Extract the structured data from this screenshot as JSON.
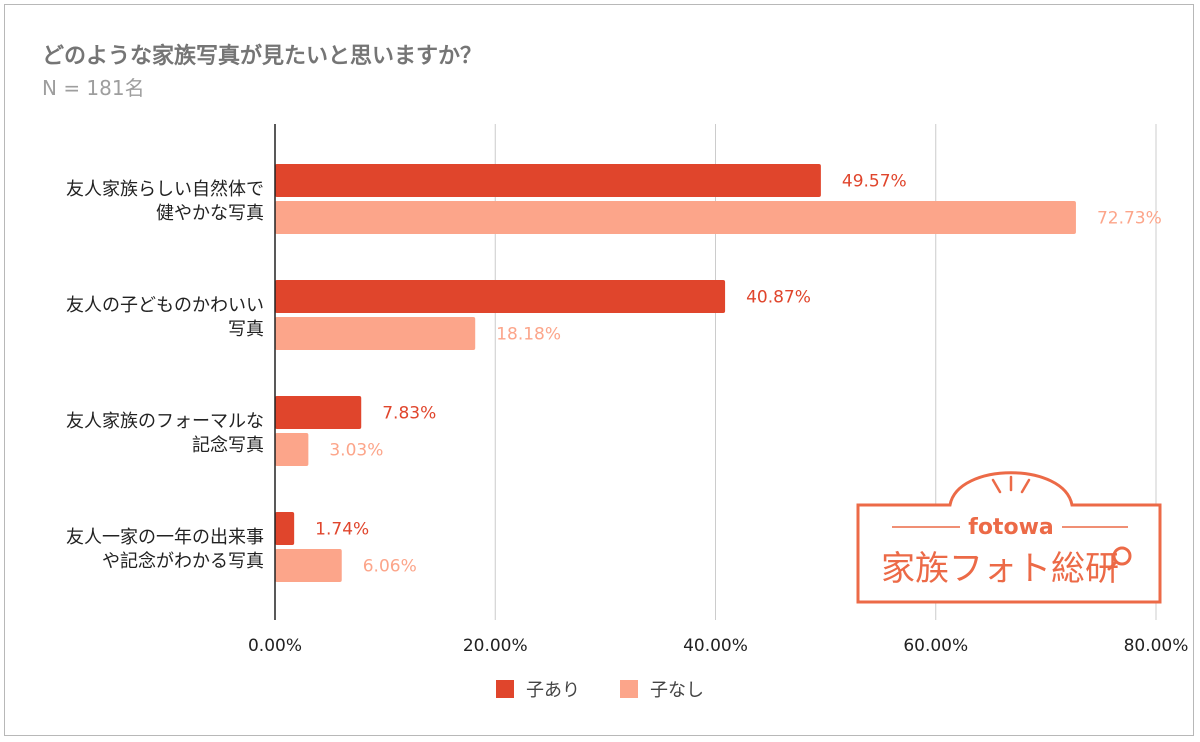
{
  "title": "どのような家族写真が見たいと思いますか？",
  "subtitle": "N = 181名",
  "colors": {
    "series1": "#e0452c",
    "series2": "#fca58a",
    "axis": "#222222",
    "grid": "#cccccc",
    "logo": "#ec6a47"
  },
  "logo": {
    "brand": "fotowa",
    "name": "家族フォト総研",
    "icon": "magnifier-icon"
  },
  "chart_data": {
    "type": "bar",
    "orientation": "horizontal",
    "categories": [
      [
        "友人家族らしい自然体で",
        "健やかな写真"
      ],
      [
        "友人の子どものかわいい",
        "写真"
      ],
      [
        "友人家族のフォーマルな",
        "記念写真"
      ],
      [
        "友人一家の一年の出来事",
        "や記念がわかる写真"
      ]
    ],
    "series": [
      {
        "name": "子あり",
        "values": [
          49.57,
          40.87,
          7.83,
          1.74
        ],
        "labels": [
          "49.57%",
          "40.87%",
          "7.83%",
          "1.74%"
        ]
      },
      {
        "name": "子なし",
        "values": [
          72.73,
          18.18,
          3.03,
          6.06
        ],
        "labels": [
          "72.73%",
          "18.18%",
          "3.03%",
          "6.06%"
        ]
      }
    ],
    "xlim": [
      0,
      80
    ],
    "xticks": [
      "0.00%",
      "20.00%",
      "40.00%",
      "60.00%",
      "80.00%"
    ],
    "grid": true,
    "legend": "bottom"
  }
}
